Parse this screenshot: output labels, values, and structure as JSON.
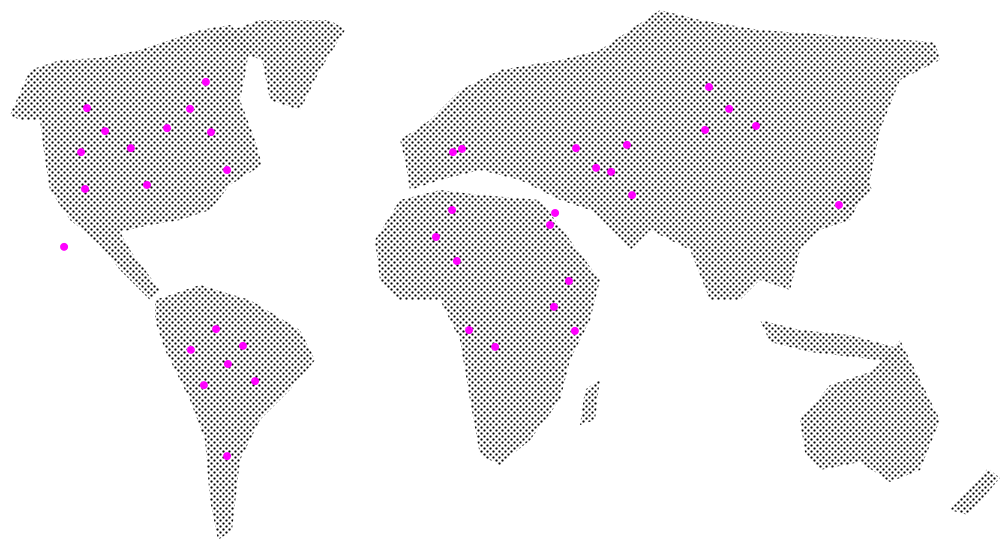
{
  "map": {
    "land_style": "dotted-halftone",
    "colors": {
      "land_dot": "#000000",
      "marker": "#ff00ff",
      "background": "#ffffff"
    },
    "markers": [
      {
        "lon": -126.5,
        "lat": 62.6
      },
      {
        "lon": -120.1,
        "lat": 56.3
      },
      {
        "lon": -128.6,
        "lat": 50.5
      },
      {
        "lon": -111.0,
        "lat": 51.6
      },
      {
        "lon": -98.2,
        "lat": 57.1
      },
      {
        "lon": -90.1,
        "lat": 62.4
      },
      {
        "lon": -84.5,
        "lat": 69.8
      },
      {
        "lon": -82.7,
        "lat": 56.0
      },
      {
        "lon": -77.0,
        "lat": 45.6
      },
      {
        "lon": -105.3,
        "lat": 41.5
      },
      {
        "lon": -127.2,
        "lat": 40.4
      },
      {
        "lon": -134.6,
        "lat": 24.5
      },
      {
        "lon": -80.9,
        "lat": 1.9
      },
      {
        "lon": -71.4,
        "lat": -2.7
      },
      {
        "lon": -89.8,
        "lat": -3.8
      },
      {
        "lon": -76.7,
        "lat": -7.7
      },
      {
        "lon": -85.2,
        "lat": -13.5
      },
      {
        "lon": -67.1,
        "lat": -12.4
      },
      {
        "lon": -77.0,
        "lat": -33.0
      },
      {
        "lon": 2.8,
        "lat": 50.5
      },
      {
        "lon": 6.0,
        "lat": 51.4
      },
      {
        "lon": 2.5,
        "lat": 34.6
      },
      {
        "lon": -3.2,
        "lat": 27.2
      },
      {
        "lon": 4.2,
        "lat": 20.6
      },
      {
        "lon": 38.9,
        "lat": 33.8
      },
      {
        "lon": 37.1,
        "lat": 30.5
      },
      {
        "lon": 43.8,
        "lat": 15.1
      },
      {
        "lon": 38.5,
        "lat": 8.0
      },
      {
        "lon": 45.9,
        "lat": 1.4
      },
      {
        "lon": 8.5,
        "lat": 1.6
      },
      {
        "lon": 17.7,
        "lat": -3.0
      },
      {
        "lon": 46.3,
        "lat": 51.6
      },
      {
        "lon": 64.3,
        "lat": 52.5
      },
      {
        "lon": 53.4,
        "lat": 46.2
      },
      {
        "lon": 58.7,
        "lat": 45.1
      },
      {
        "lon": 66.1,
        "lat": 38.7
      },
      {
        "lon": 93.3,
        "lat": 68.4
      },
      {
        "lon": 100.4,
        "lat": 62.4
      },
      {
        "lon": 109.9,
        "lat": 57.7
      },
      {
        "lon": 91.9,
        "lat": 56.6
      },
      {
        "lon": 139.2,
        "lat": 36.0
      }
    ]
  }
}
